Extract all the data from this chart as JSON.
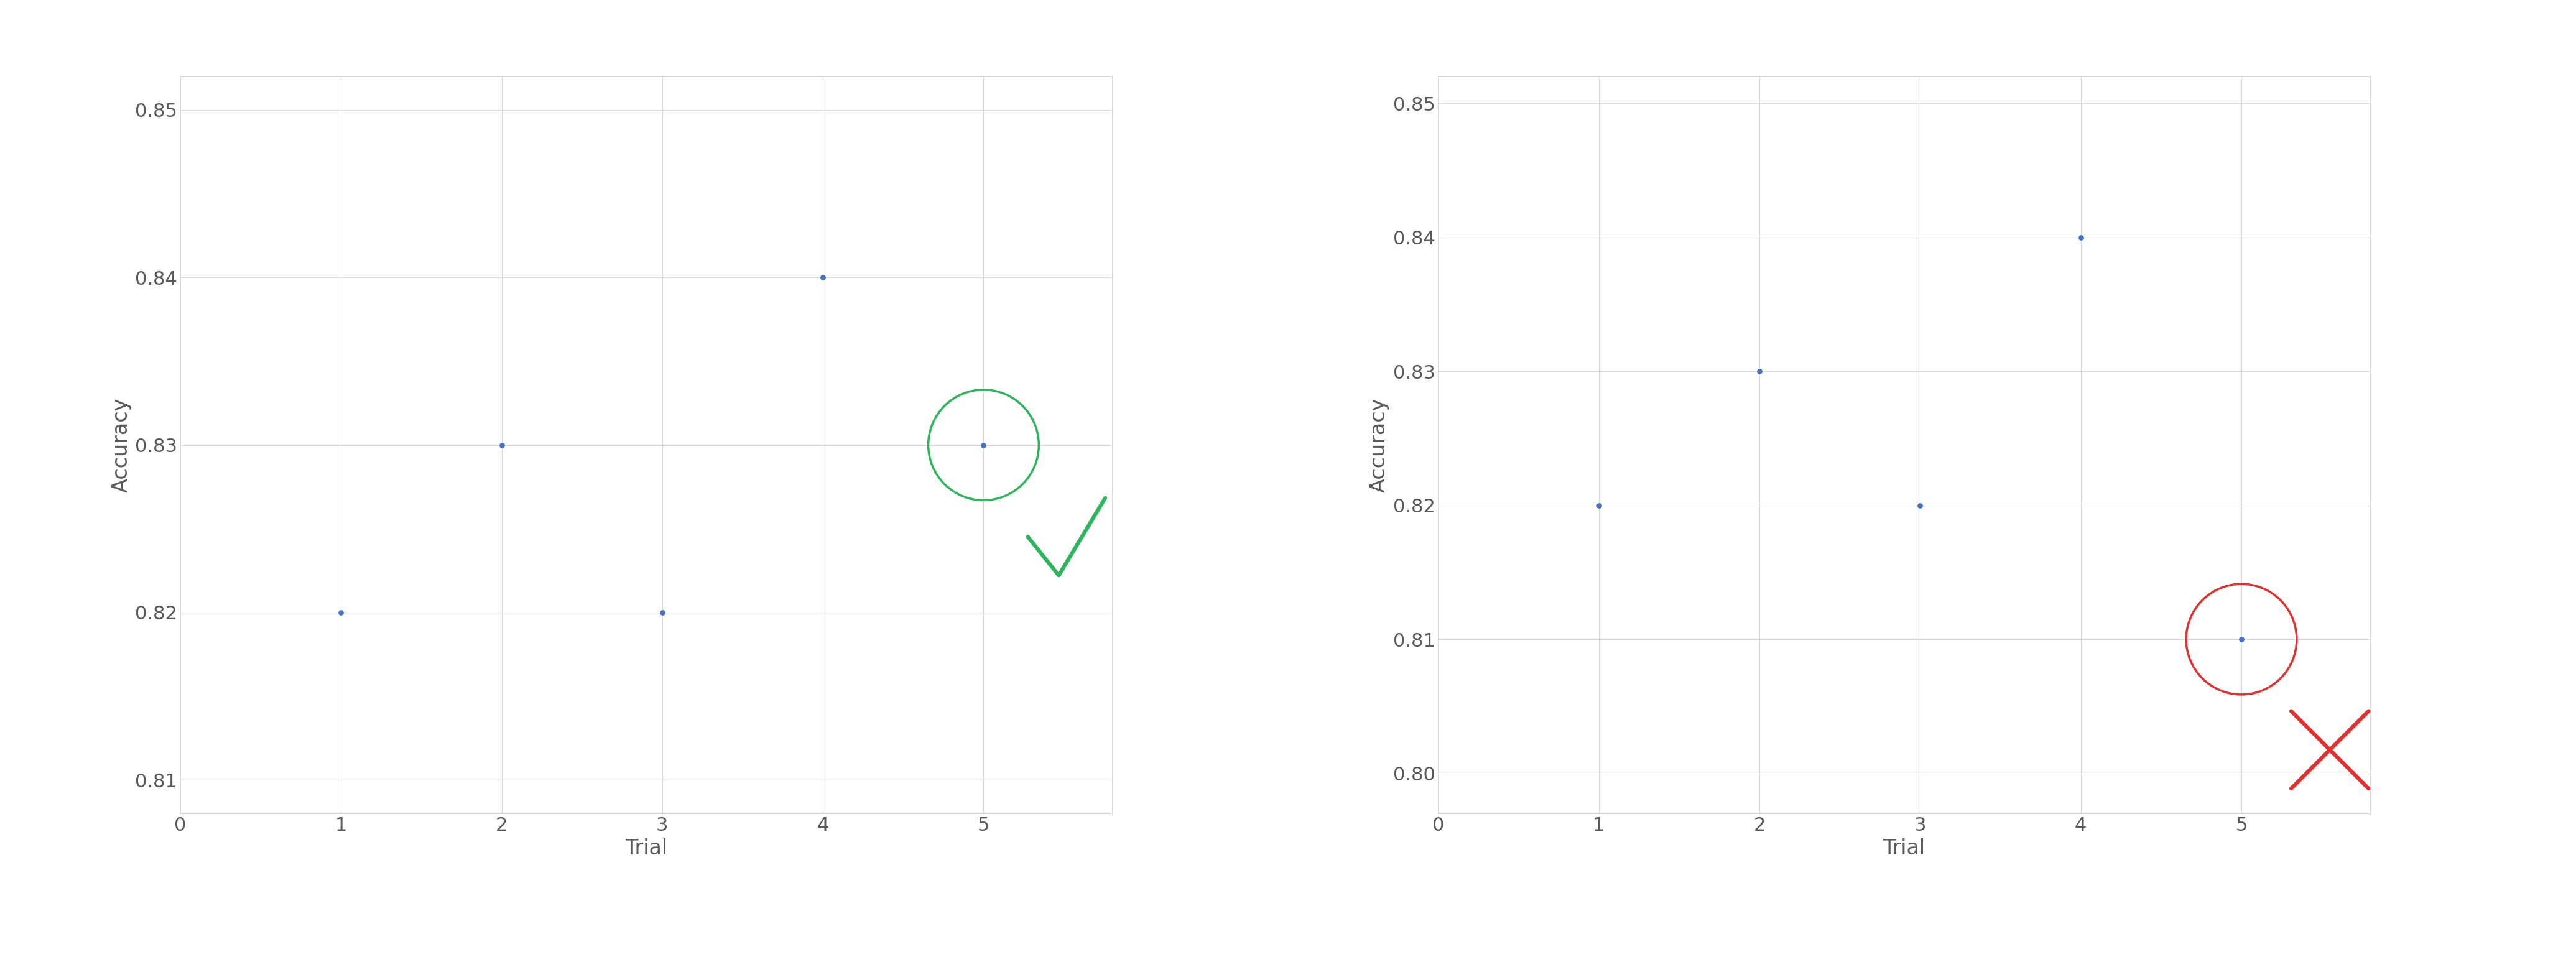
{
  "left": {
    "x": [
      1,
      2,
      3,
      4,
      5
    ],
    "y": [
      0.82,
      0.83,
      0.82,
      0.84,
      0.83
    ],
    "highlighted_point": [
      5,
      0.83
    ],
    "circle_color": "#2db55d",
    "marker_type": "check",
    "xlabel": "Trial",
    "ylabel": "Accuracy",
    "ylim": [
      0.808,
      0.852
    ],
    "xlim": [
      0,
      5.8
    ],
    "yticks": [
      0.81,
      0.82,
      0.83,
      0.84,
      0.85
    ],
    "xticks": [
      0,
      1,
      2,
      3,
      4,
      5
    ]
  },
  "right": {
    "x": [
      1,
      2,
      3,
      4,
      5
    ],
    "y": [
      0.82,
      0.83,
      0.82,
      0.84,
      0.81
    ],
    "highlighted_point": [
      5,
      0.81
    ],
    "circle_color": "#e03030",
    "marker_type": "cross",
    "xlabel": "Trial",
    "ylabel": "Accuracy",
    "ylim": [
      0.797,
      0.852
    ],
    "xlim": [
      0,
      5.8
    ],
    "yticks": [
      0.8,
      0.81,
      0.82,
      0.83,
      0.84,
      0.85
    ],
    "xticks": [
      0,
      1,
      2,
      3,
      4,
      5
    ]
  },
  "dot_color": "#4472c4",
  "dot_size": 40,
  "background_color": "#ffffff",
  "tick_color": "#595959",
  "grid_color": "#d9d9d9",
  "axis_linewidth": 0.8,
  "font_size_ticks": 22,
  "font_size_labels": 24
}
